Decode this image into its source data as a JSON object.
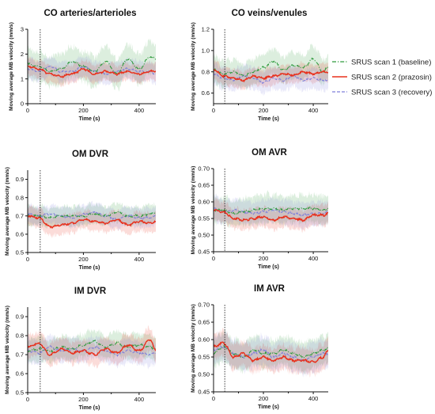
{
  "legend": {
    "items": [
      {
        "label": "SRUS scan 1 (baseline)",
        "color": "#2e9a3c",
        "dash": "dashdot"
      },
      {
        "label": "SRUS scan 2 (prazosin)",
        "color": "#e8301c",
        "dash": "solid"
      },
      {
        "label": "SRUS scan 3 (recovery)",
        "color": "#7f7fd9",
        "dash": "dashed"
      }
    ]
  },
  "chart_data": [
    {
      "type": "line",
      "title": "CO arteries/arterioles",
      "xlabel": "Time (s)",
      "ylabel": "Moving average MB velocity (mm/s)",
      "xlim": [
        0,
        460
      ],
      "ylim": [
        0,
        3
      ],
      "xticks": [
        "0",
        "200",
        "400"
      ],
      "yticks": [
        "0",
        "1",
        "2",
        "3"
      ],
      "vline_x": 45,
      "x": [
        0,
        40,
        80,
        120,
        160,
        200,
        240,
        280,
        320,
        360,
        400,
        440,
        460
      ],
      "series": [
        {
          "values": [
            1.6,
            1.5,
            1.3,
            1.4,
            1.7,
            1.5,
            1.3,
            1.7,
            1.2,
            1.8,
            1.4,
            1.9,
            1.8
          ],
          "band": 0.6
        },
        {
          "values": [
            1.5,
            1.4,
            1.2,
            1.1,
            1.2,
            1.4,
            1.2,
            1.3,
            1.2,
            1.3,
            1.2,
            1.3,
            1.3
          ],
          "band": 0.35
        },
        {
          "values": [
            1.4,
            1.3,
            1.5,
            1.3,
            1.3,
            1.5,
            1.3,
            1.2,
            1.3,
            1.4,
            1.3,
            1.3,
            1.2
          ],
          "band": 0.4
        }
      ]
    },
    {
      "type": "line",
      "title": "CO veins/venules",
      "xlabel": "Time (s)",
      "ylabel": "Moving average MB velocity (mm/s)",
      "xlim": [
        0,
        460
      ],
      "ylim": [
        0.5,
        1.2
      ],
      "xticks": [
        "0",
        "200",
        "400"
      ],
      "yticks": [
        "0.6",
        "0.8",
        "1.0",
        "1.2"
      ],
      "vline_x": 45,
      "x": [
        0,
        40,
        80,
        120,
        160,
        200,
        240,
        280,
        320,
        360,
        400,
        440,
        460
      ],
      "series": [
        {
          "values": [
            0.82,
            0.78,
            0.8,
            0.76,
            0.8,
            0.84,
            0.9,
            0.82,
            0.86,
            0.84,
            0.92,
            0.8,
            0.85
          ],
          "band": 0.12
        },
        {
          "values": [
            0.82,
            0.76,
            0.74,
            0.72,
            0.76,
            0.74,
            0.76,
            0.78,
            0.77,
            0.8,
            0.78,
            0.8,
            0.8
          ],
          "band": 0.08
        },
        {
          "values": [
            0.78,
            0.74,
            0.72,
            0.76,
            0.74,
            0.7,
            0.74,
            0.72,
            0.76,
            0.72,
            0.74,
            0.72,
            0.72
          ],
          "band": 0.1
        }
      ]
    },
    {
      "type": "line",
      "title": "OM DVR",
      "xlabel": "Time (s)",
      "ylabel": "Moving average MB velocity (mm/s)",
      "xlim": [
        0,
        460
      ],
      "ylim": [
        0.5,
        0.95
      ],
      "xticks": [
        "0",
        "200",
        "400"
      ],
      "yticks": [
        "0.5",
        "0.6",
        "0.7",
        "0.8",
        "0.9"
      ],
      "vline_x": 45,
      "x": [
        0,
        40,
        80,
        120,
        160,
        200,
        240,
        280,
        320,
        360,
        400,
        440,
        460
      ],
      "series": [
        {
          "values": [
            0.7,
            0.7,
            0.69,
            0.7,
            0.7,
            0.7,
            0.71,
            0.7,
            0.72,
            0.7,
            0.7,
            0.71,
            0.72
          ],
          "band": 0.05
        },
        {
          "values": [
            0.7,
            0.69,
            0.64,
            0.65,
            0.66,
            0.68,
            0.67,
            0.66,
            0.68,
            0.65,
            0.67,
            0.66,
            0.67
          ],
          "band": 0.05
        },
        {
          "values": [
            0.71,
            0.7,
            0.71,
            0.7,
            0.69,
            0.71,
            0.72,
            0.7,
            0.68,
            0.7,
            0.69,
            0.69,
            0.7
          ],
          "band": 0.05
        }
      ]
    },
    {
      "type": "line",
      "title": "OM AVR",
      "xlabel": "Time (s)",
      "ylabel": "Moving average MB velocity (mm/s)",
      "xlim": [
        0,
        460
      ],
      "ylim": [
        0.45,
        0.7
      ],
      "xticks": [
        "0",
        "200",
        "400"
      ],
      "yticks": [
        "0.45",
        "0.50",
        "0.55",
        "0.60",
        "0.65",
        "0.70"
      ],
      "vline_x": 45,
      "x": [
        0,
        40,
        80,
        120,
        160,
        200,
        240,
        280,
        320,
        360,
        400,
        440,
        460
      ],
      "series": [
        {
          "values": [
            0.575,
            0.575,
            0.565,
            0.57,
            0.575,
            0.58,
            0.58,
            0.575,
            0.58,
            0.58,
            0.58,
            0.575,
            0.58
          ],
          "band": 0.04
        },
        {
          "values": [
            0.575,
            0.57,
            0.55,
            0.545,
            0.55,
            0.555,
            0.545,
            0.555,
            0.55,
            0.545,
            0.56,
            0.56,
            0.565
          ],
          "band": 0.03
        },
        {
          "values": [
            0.58,
            0.57,
            0.575,
            0.57,
            0.565,
            0.57,
            0.575,
            0.57,
            0.565,
            0.56,
            0.565,
            0.565,
            0.57
          ],
          "band": 0.035
        }
      ]
    },
    {
      "type": "line",
      "title": "IM DVR",
      "xlabel": "Time (s)",
      "ylabel": "Moving average MB velocity (mm/s)",
      "xlim": [
        0,
        460
      ],
      "ylim": [
        0.5,
        0.95
      ],
      "xticks": [
        "0",
        "200",
        "400"
      ],
      "yticks": [
        "0.5",
        "0.6",
        "0.7",
        "0.8",
        "0.9"
      ],
      "vline_x": 45,
      "x": [
        0,
        40,
        80,
        120,
        160,
        200,
        240,
        280,
        320,
        360,
        400,
        440,
        460
      ],
      "series": [
        {
          "values": [
            0.72,
            0.73,
            0.72,
            0.74,
            0.73,
            0.75,
            0.77,
            0.74,
            0.76,
            0.74,
            0.75,
            0.74,
            0.73
          ],
          "band": 0.06
        },
        {
          "values": [
            0.74,
            0.76,
            0.7,
            0.73,
            0.71,
            0.72,
            0.7,
            0.73,
            0.71,
            0.75,
            0.72,
            0.78,
            0.72
          ],
          "band": 0.06
        },
        {
          "values": [
            0.72,
            0.71,
            0.74,
            0.72,
            0.73,
            0.72,
            0.74,
            0.72,
            0.7,
            0.72,
            0.71,
            0.7,
            0.71
          ],
          "band": 0.06
        }
      ]
    },
    {
      "type": "line",
      "title": "IM AVR",
      "xlabel": "Time (s)",
      "ylabel": "Moving average MB velocity (mm/s)",
      "xlim": [
        0,
        460
      ],
      "ylim": [
        0.45,
        0.7
      ],
      "xticks": [
        "0",
        "200",
        "400"
      ],
      "yticks": [
        "0.45",
        "0.50",
        "0.55",
        "0.60",
        "0.65",
        "0.70"
      ],
      "vline_x": 45,
      "x": [
        0,
        40,
        80,
        120,
        160,
        200,
        240,
        280,
        320,
        360,
        400,
        440,
        460
      ],
      "series": [
        {
          "values": [
            0.56,
            0.58,
            0.56,
            0.55,
            0.57,
            0.56,
            0.56,
            0.57,
            0.56,
            0.55,
            0.56,
            0.57,
            0.575
          ],
          "band": 0.04
        },
        {
          "values": [
            0.58,
            0.59,
            0.55,
            0.56,
            0.54,
            0.55,
            0.54,
            0.55,
            0.54,
            0.54,
            0.535,
            0.55,
            0.57
          ],
          "band": 0.035
        },
        {
          "values": [
            0.57,
            0.58,
            0.56,
            0.55,
            0.56,
            0.57,
            0.55,
            0.56,
            0.55,
            0.54,
            0.55,
            0.56,
            0.56
          ],
          "band": 0.04
        }
      ]
    }
  ]
}
